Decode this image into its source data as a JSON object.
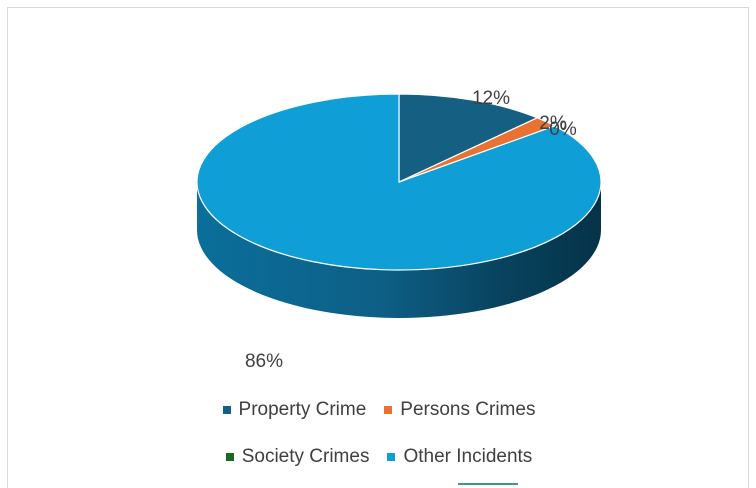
{
  "chart_data": {
    "type": "pie",
    "variant": "3d",
    "start_angle_deg": 0,
    "categories": [
      "Property Crime",
      "Persons Crimes",
      "Society Crimes",
      "Other Incidents"
    ],
    "values": [
      12,
      2,
      0,
      86
    ],
    "data_labels": [
      "12%",
      "2%",
      "0%",
      "86%"
    ],
    "colors": [
      "#156082",
      "#e97132",
      "#196b24",
      "#0f9ed5"
    ],
    "side_colors": [
      "#0c3b52",
      "#a24f22",
      "#0f4416",
      "#09587a"
    ],
    "legend": {
      "position": "bottom",
      "rows": [
        [
          0,
          1
        ],
        [
          2,
          3
        ]
      ]
    }
  }
}
